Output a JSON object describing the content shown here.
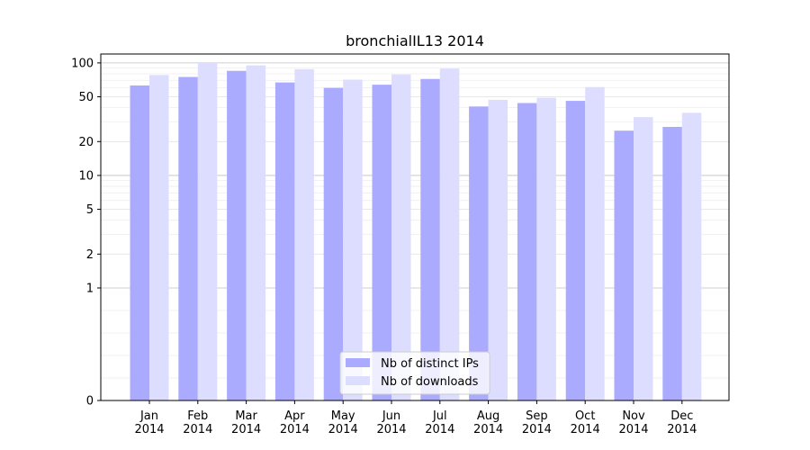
{
  "chart_data": {
    "type": "bar",
    "title": "bronchialIL13 2014",
    "xlabel": "",
    "ylabel": "",
    "yscale": "symlog",
    "ylim": [
      0,
      120
    ],
    "yticks": [
      0,
      1,
      2,
      5,
      10,
      20,
      50,
      100
    ],
    "ytick_labels": [
      "0",
      "1",
      "2",
      "5",
      "10",
      "20",
      "50",
      "100"
    ],
    "grid": true,
    "legend_position": "bottom-center",
    "categories": [
      [
        "Jan",
        "2014"
      ],
      [
        "Feb",
        "2014"
      ],
      [
        "Mar",
        "2014"
      ],
      [
        "Apr",
        "2014"
      ],
      [
        "May",
        "2014"
      ],
      [
        "Jun",
        "2014"
      ],
      [
        "Jul",
        "2014"
      ],
      [
        "Aug",
        "2014"
      ],
      [
        "Sep",
        "2014"
      ],
      [
        "Oct",
        "2014"
      ],
      [
        "Nov",
        "2014"
      ],
      [
        "Dec",
        "2014"
      ]
    ],
    "series": [
      {
        "name": "Nb of distinct IPs",
        "color": "#aaaaff",
        "values": [
          63,
          75,
          85,
          67,
          60,
          64,
          72,
          41,
          44,
          46,
          25,
          27
        ]
      },
      {
        "name": "Nb of downloads",
        "color": "#ddddff",
        "values": [
          78,
          100,
          95,
          88,
          71,
          79,
          89,
          47,
          49,
          61,
          33,
          36
        ]
      }
    ]
  }
}
